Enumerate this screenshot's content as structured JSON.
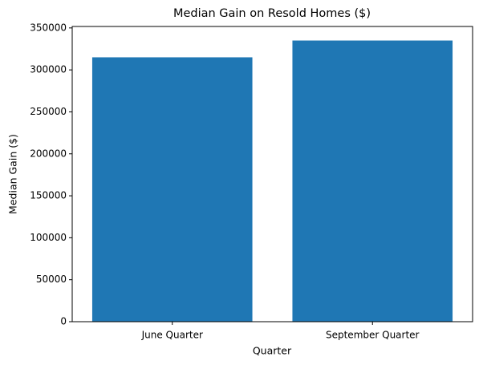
{
  "chart_data": {
    "type": "bar",
    "title": "Median Gain on Resold Homes ($)",
    "x_label": "Quarter",
    "y_label": "Median Gain ($)",
    "categories": [
      "June Quarter",
      "September Quarter"
    ],
    "values": [
      315000,
      335000
    ],
    "color": "#1f77b4",
    "ylim": [
      0,
      351750
    ],
    "yticks": [
      0,
      50000,
      100000,
      150000,
      200000,
      250000,
      300000,
      350000
    ]
  }
}
